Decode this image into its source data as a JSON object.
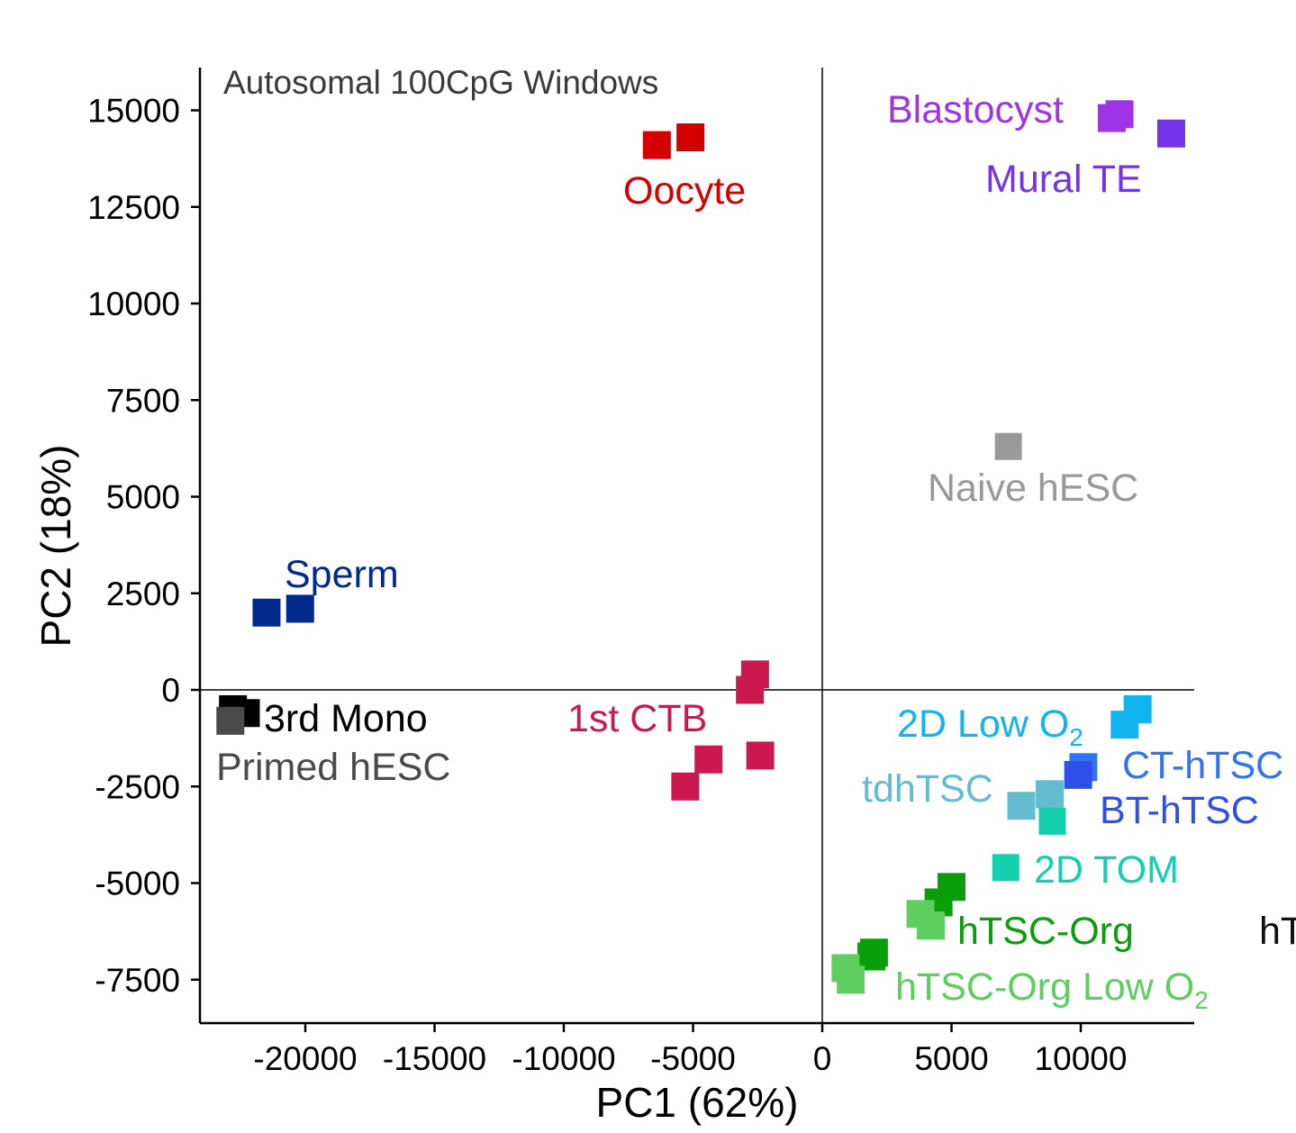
{
  "chart_data": {
    "type": "scatter",
    "title": "Autosomal 100CpG Windows",
    "xlabel": "PC1 (62%)",
    "ylabel": "PC2 (18%)",
    "xlim": [
      -24000,
      14500
    ],
    "ylim": [
      -8600,
      16100
    ],
    "xticks": [
      -20000,
      -15000,
      -10000,
      -5000,
      0,
      5000,
      10000
    ],
    "yticks": [
      15000,
      12500,
      10000,
      7500,
      5000,
      2500,
      0,
      -2500,
      -5000,
      -7500
    ],
    "xtick_labels": [
      "-20000",
      "-15000",
      "-10000",
      "-5000",
      "0",
      "5000",
      "10000"
    ],
    "ytick_labels": [
      "15000",
      "12500",
      "10000",
      "7500",
      "5000",
      "2500",
      "0",
      "-2500",
      "-5000",
      "-7500"
    ],
    "reference_lines": {
      "x": 0,
      "y": 0
    },
    "grid": false,
    "series": [
      {
        "name": "Oocyte",
        "label": "Oocyte",
        "color": "#d40000",
        "points": [
          [
            -6400,
            14100
          ],
          [
            -5100,
            14300
          ]
        ]
      },
      {
        "name": "Blastocyst",
        "label": "Blastocyst",
        "color": "#a033e8",
        "points": [
          [
            11500,
            14900
          ],
          [
            11200,
            14800
          ]
        ]
      },
      {
        "name": "Mural TE",
        "label": "Mural TE",
        "color": "#7433e8",
        "points": [
          [
            13500,
            14400
          ]
        ]
      },
      {
        "name": "Naive hESC",
        "label": "Naive hESC",
        "color": "#999999",
        "points": [
          [
            7200,
            6300
          ]
        ]
      },
      {
        "name": "Sperm",
        "label": "Sperm",
        "color": "#002a8c",
        "points": [
          [
            -21500,
            2000
          ],
          [
            -20200,
            2100
          ]
        ]
      },
      {
        "name": "1st CTB",
        "label": "1st CTB",
        "color": "#cc1850",
        "points": [
          [
            -2600,
            400
          ],
          [
            -2800,
            0
          ],
          [
            -2400,
            -1700
          ],
          [
            -4400,
            -1800
          ],
          [
            -5300,
            -2500
          ]
        ]
      },
      {
        "name": "3rd Mono",
        "label": "3rd Mono",
        "color": "#000000",
        "points": [
          [
            -22800,
            -500
          ],
          [
            -22300,
            -600
          ]
        ]
      },
      {
        "name": "Primed hESC",
        "label": "Primed hESC",
        "color": "#4a4a4a",
        "points": [
          [
            -22900,
            -800
          ]
        ]
      },
      {
        "name": "2D Low O2",
        "label": "2D Low O",
        "label_sub": "2",
        "color": "#12b4f0",
        "points": [
          [
            12200,
            -500
          ],
          [
            11700,
            -900
          ]
        ]
      },
      {
        "name": "CT-hTSC",
        "label": "CT-hTSC",
        "color": "#2f74f0",
        "points": [
          [
            10100,
            -2000
          ]
        ]
      },
      {
        "name": "BT-hTSC",
        "label": "BT-hTSC",
        "color": "#2f50e8",
        "points": [
          [
            9900,
            -2200
          ]
        ]
      },
      {
        "name": "tdhTSC",
        "label": "tdhTSC",
        "color": "#63bcd0",
        "points": [
          [
            8800,
            -2700
          ],
          [
            7700,
            -3000
          ]
        ]
      },
      {
        "name": "2D TOM",
        "label": "2D TOM",
        "color": "#13cfae",
        "points": [
          [
            8900,
            -3400
          ],
          [
            7100,
            -4600
          ]
        ]
      },
      {
        "name": "hTSC-Org",
        "label": "hTSC-Org",
        "color": "#0a9e0a",
        "points": [
          [
            5000,
            -5100
          ],
          [
            4500,
            -5500
          ],
          [
            2000,
            -6800
          ],
          [
            1900,
            -6900
          ]
        ]
      },
      {
        "name": "hTSC-Org Low O2",
        "label": "hTSC-Org Low O",
        "label_sub": "2",
        "color": "#5ecf5e",
        "points": [
          [
            3800,
            -5800
          ],
          [
            4200,
            -6100
          ],
          [
            900,
            -7200
          ],
          [
            1100,
            -7500
          ]
        ]
      }
    ],
    "cutoff_label": "hT"
  }
}
